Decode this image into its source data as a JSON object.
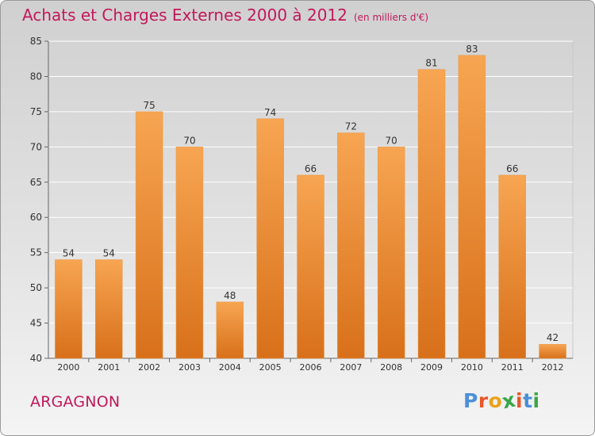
{
  "chart_data": {
    "type": "bar",
    "title": "Achats et Charges Externes 2000 à 2012",
    "subtitle": "(en milliers d'€)",
    "categories": [
      "2000",
      "2001",
      "2002",
      "2003",
      "2004",
      "2005",
      "2006",
      "2007",
      "2008",
      "2009",
      "2010",
      "2011",
      "2012"
    ],
    "values": [
      54,
      54,
      75,
      70,
      48,
      74,
      66,
      72,
      70,
      81,
      83,
      66,
      42
    ],
    "ylim": [
      40,
      85
    ],
    "yticks": [
      40,
      45,
      50,
      55,
      60,
      65,
      70,
      75,
      80,
      85
    ],
    "grid": true,
    "bar_color_top": "#f7a552",
    "bar_color_bottom": "#d8701a"
  },
  "footer": {
    "commune": "ARGAGNON",
    "logo_letters": [
      "P",
      "r",
      "o",
      "x",
      "i",
      "t",
      "i"
    ],
    "logo_colors": [
      "#4a90d9",
      "#e8572b",
      "#e8a21b",
      "#3aa648",
      "#e8572b",
      "#4a90d9",
      "#3aa648"
    ]
  }
}
